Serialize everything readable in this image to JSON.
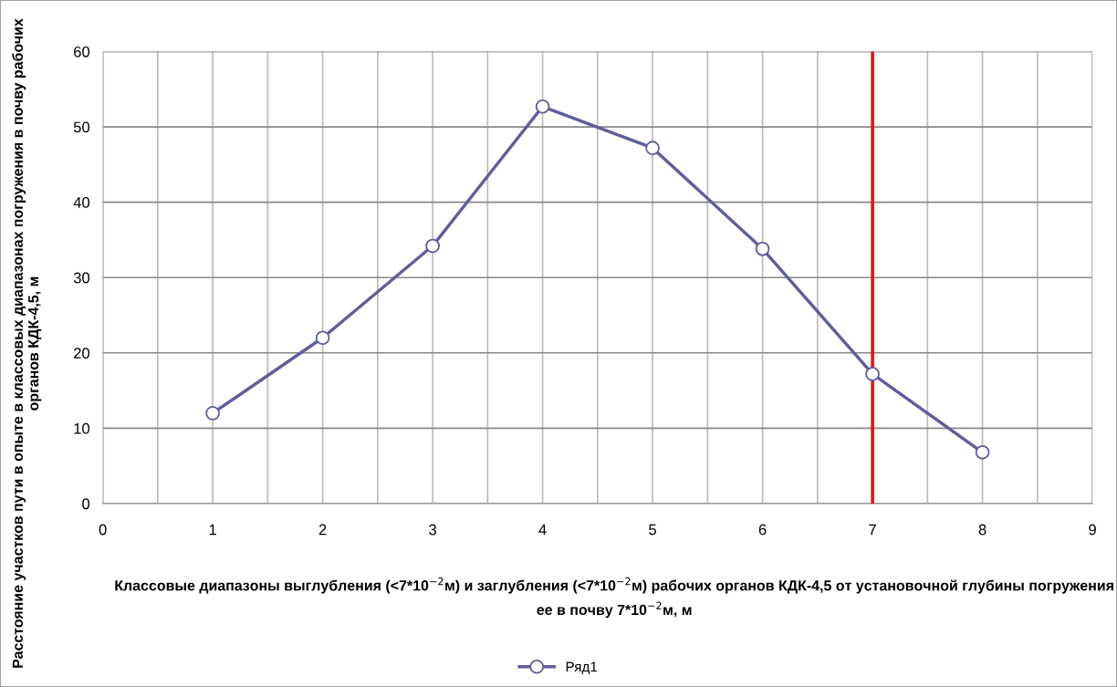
{
  "chart_data": {
    "type": "line",
    "xlabel": "Классовые диапазоны выглубления (<7*10$^{−2}$м) и заглубления (<7*10$^{−2}$м) рабочих органов КДК-4,5 от установочной глубины погружения ее в почву 7*10$^{−2}$м, м",
    "ylabel": "Расстояние участков пути в опыте в классовых диапазонах погружения в почву рабочих органов КДК-4,5, м",
    "x": [
      1,
      2,
      3,
      4,
      5,
      6,
      7,
      8
    ],
    "series": [
      {
        "name": "Ряд1",
        "color": "#5f5f9b",
        "values": [
          12.0,
          22.0,
          34.2,
          52.7,
          47.2,
          33.8,
          17.2,
          6.8
        ]
      }
    ],
    "xlim": [
      0,
      9
    ],
    "xticks": [
      0,
      {
        "value": 0.5,
        "label": null
      },
      1,
      {
        "value": 1.5,
        "label": null
      },
      2,
      {
        "value": 2.5,
        "label": null
      },
      3,
      {
        "value": 3.5,
        "label": null
      },
      4,
      {
        "value": 4.5,
        "label": null
      },
      5,
      {
        "value": 5.5,
        "label": null
      },
      6,
      {
        "value": 6.5,
        "label": null
      },
      7,
      {
        "value": 7.5,
        "label": null
      },
      8,
      {
        "value": 8.5,
        "label": null
      },
      9
    ],
    "ylim": [
      0,
      60
    ],
    "yticks": [
      0,
      10,
      20,
      30,
      40,
      50,
      60
    ],
    "ref_lines": [
      {
        "axis": "x",
        "value": 7,
        "color": "#ff0000"
      }
    ],
    "grid": true,
    "legend": "bottom",
    "marker": "circle",
    "line_style": "solid"
  }
}
